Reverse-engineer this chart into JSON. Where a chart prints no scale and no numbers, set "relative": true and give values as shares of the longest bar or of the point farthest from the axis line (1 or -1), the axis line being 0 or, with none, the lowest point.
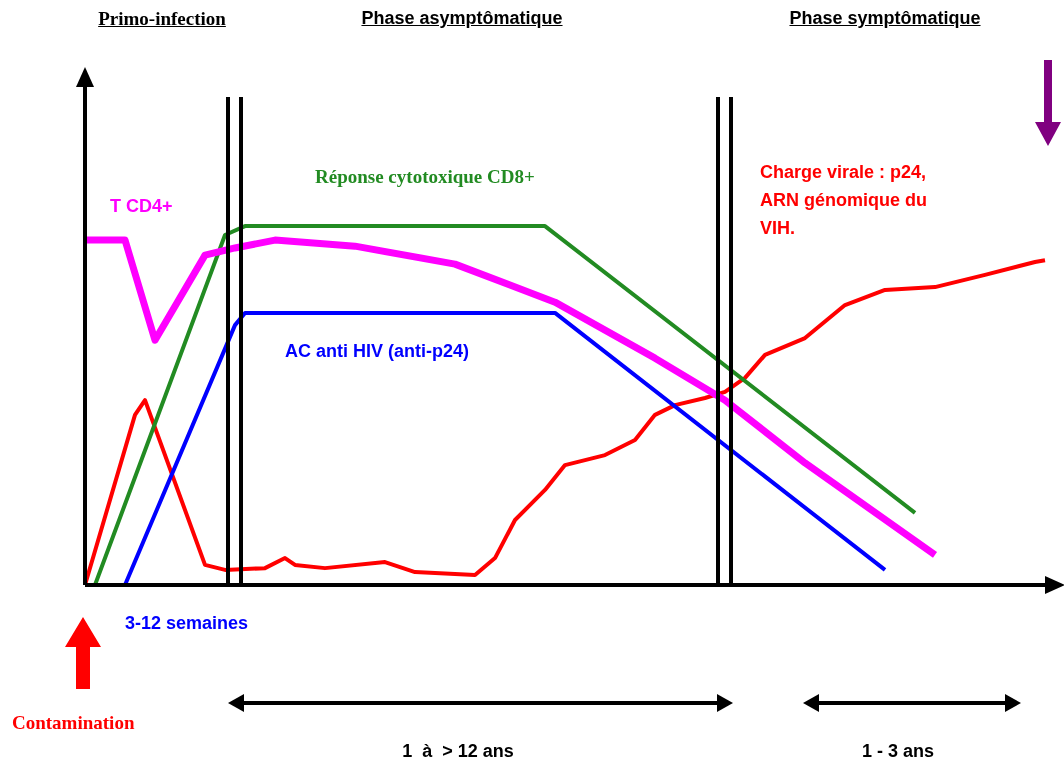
{
  "chart_data": {
    "type": "line",
    "relative": true,
    "legend": false,
    "marker": "none",
    "categories": [
      null,
      null,
      null,
      null,
      null,
      null,
      null,
      null,
      null,
      null,
      null,
      null,
      null,
      null,
      null,
      null,
      null,
      null,
      null,
      null,
      null,
      null,
      null,
      null,
      null,
      null,
      null,
      null,
      null,
      null,
      null,
      null,
      null,
      null,
      null,
      null,
      null,
      null,
      null,
      null,
      null,
      null,
      null,
      null,
      null,
      null,
      null,
      null,
      null,
      null,
      null,
      null,
      null,
      null,
      null,
      null,
      null,
      null,
      null,
      null,
      null,
      null,
      null,
      null,
      null,
      null,
      null,
      null,
      null,
      null,
      null,
      null,
      null,
      null,
      null,
      null,
      null,
      null,
      null,
      null,
      null,
      null,
      null,
      null,
      null,
      null,
      null,
      null,
      null,
      null,
      null,
      null,
      null,
      null,
      null,
      null,
      null
    ],
    "series": [
      {
        "name": "T CD4+",
        "color": "#ff00ff",
        "values": [
          0.961,
          null,
          null,
          null,
          0.961,
          null,
          null,
          0.682,
          null,
          null,
          null,
          null,
          0.919,
          null,
          null,
          0.939,
          null,
          null,
          null,
          0.961,
          null,
          null,
          null,
          null,
          null,
          null,
          null,
          0.944,
          null,
          null,
          null,
          null,
          null,
          null,
          null,
          null,
          null,
          0.894,
          null,
          null,
          null,
          null,
          null,
          null,
          null,
          null,
          null,
          0.788,
          null,
          null,
          null,
          null,
          null,
          null,
          null,
          null,
          null,
          0.632,
          null,
          null,
          null,
          null,
          null,
          null,
          0.515,
          null,
          null,
          null,
          null,
          null,
          null,
          null,
          0.34,
          null,
          null,
          null,
          null,
          null,
          null,
          null,
          null,
          null,
          null,
          null,
          null,
          0.084,
          null,
          null,
          null,
          null,
          null,
          null,
          null,
          null,
          null,
          null,
          null
        ]
      },
      {
        "name": "Réponse cytotoxique CD8+",
        "color": "#228b22",
        "values": [
          null,
          0,
          null,
          null,
          null,
          null,
          null,
          null,
          null,
          null,
          null,
          null,
          null,
          null,
          0.975,
          null,
          1,
          null,
          null,
          null,
          null,
          null,
          null,
          null,
          null,
          null,
          null,
          null,
          null,
          null,
          null,
          null,
          null,
          null,
          null,
          null,
          null,
          null,
          null,
          null,
          null,
          null,
          null,
          null,
          null,
          null,
          1,
          null,
          null,
          null,
          null,
          null,
          null,
          null,
          null,
          null,
          null,
          null,
          null,
          null,
          null,
          null,
          null,
          null,
          null,
          null,
          null,
          null,
          null,
          null,
          null,
          null,
          null,
          null,
          null,
          null,
          null,
          null,
          null,
          null,
          null,
          null,
          null,
          0.201,
          null,
          null,
          null,
          null,
          null,
          null,
          null,
          null,
          null,
          null,
          null,
          null,
          null
        ]
      },
      {
        "name": "AC anti HIV (anti-p24)",
        "color": "#0000ff",
        "values": [
          null,
          null,
          null,
          null,
          0,
          null,
          null,
          null,
          null,
          null,
          null,
          null,
          null,
          null,
          null,
          0.724,
          0.758,
          null,
          null,
          null,
          null,
          null,
          null,
          null,
          null,
          null,
          null,
          null,
          null,
          null,
          null,
          null,
          null,
          null,
          null,
          null,
          null,
          null,
          null,
          null,
          null,
          null,
          null,
          null,
          null,
          null,
          null,
          0.758,
          null,
          null,
          null,
          null,
          null,
          null,
          null,
          null,
          null,
          null,
          null,
          null,
          null,
          null,
          null,
          null,
          null,
          null,
          null,
          null,
          null,
          null,
          null,
          null,
          null,
          null,
          null,
          null,
          null,
          null,
          null,
          null,
          0.042,
          null,
          null,
          null,
          null,
          null,
          null,
          null,
          null,
          null,
          null,
          null,
          null,
          null,
          null,
          null,
          null
        ]
      },
      {
        "name": "Charge virale : p24, ARN génomique du VIH.",
        "color": "#ff0000",
        "values": [
          0,
          null,
          null,
          null,
          null,
          0.474,
          0.515,
          null,
          null,
          null,
          null,
          null,
          0.056,
          null,
          0.042,
          null,
          null,
          null,
          0.047,
          null,
          0.075,
          0.056,
          null,
          null,
          0.047,
          null,
          null,
          null,
          null,
          null,
          0.064,
          null,
          null,
          0.036,
          null,
          null,
          null,
          null,
          null,
          0.028,
          null,
          0.075,
          null,
          0.181,
          null,
          null,
          0.265,
          null,
          0.334,
          null,
          null,
          null,
          0.362,
          null,
          null,
          0.404,
          null,
          0.474,
          null,
          0.501,
          null,
          null,
          0.521,
          null,
          0.538,
          null,
          0.577,
          null,
          0.641,
          null,
          null,
          null,
          0.688,
          null,
          null,
          null,
          0.78,
          null,
          null,
          null,
          0.822,
          null,
          null,
          null,
          null,
          0.83,
          null,
          null,
          null,
          null,
          0.864,
          null,
          null,
          null,
          null,
          0.9,
          0.905
        ]
      }
    ],
    "annotations": [
      "Primo-infection",
      "Phase asymptômatique",
      "Phase symptômatique",
      "3-12 semaines",
      "Contamination",
      "1  à  > 12 ans",
      "1 - 3 ans"
    ]
  }
}
